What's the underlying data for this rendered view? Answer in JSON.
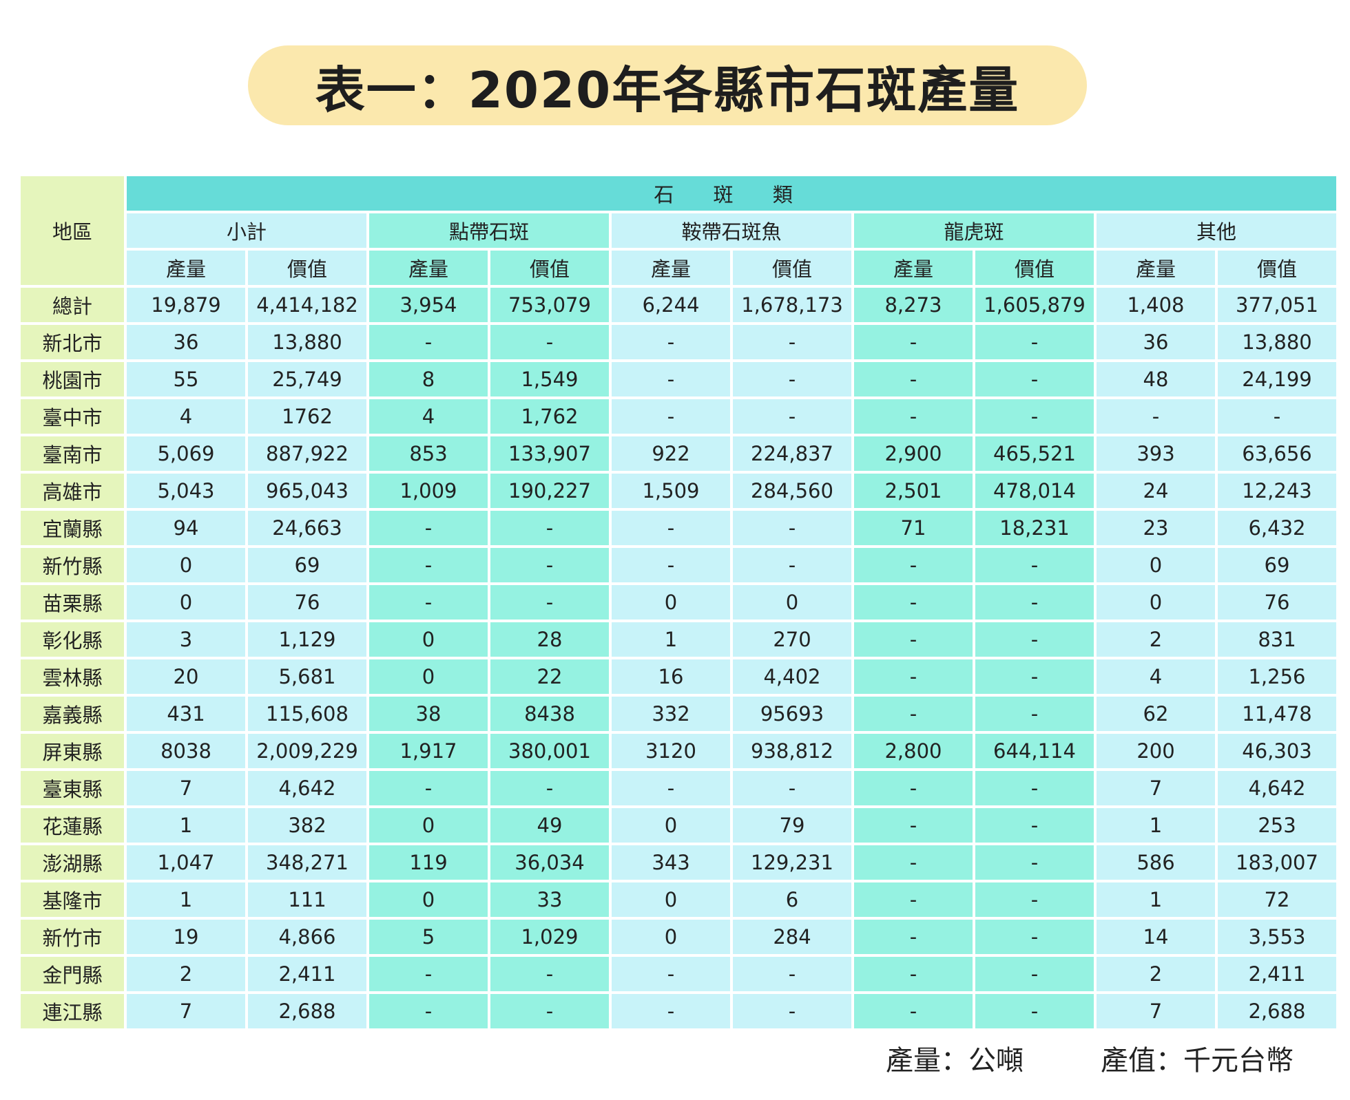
{
  "title": "表一：2020年各縣市石斑產量",
  "table": {
    "region_header": "地區",
    "category_header": "石 斑 類",
    "species": [
      "小計",
      "點帶石斑",
      "鞍帶石斑魚",
      "龍虎斑",
      "其他"
    ],
    "sub_headers": [
      "產量",
      "價值",
      "產量",
      "價值",
      "產量",
      "價值",
      "產量",
      "價值",
      "產量",
      "價值"
    ],
    "rows": [
      {
        "region": "總計",
        "values": [
          "19,879",
          "4,414,182",
          "3,954",
          "753,079",
          "6,244",
          "1,678,173",
          "8,273",
          "1,605,879",
          "1,408",
          "377,051"
        ]
      },
      {
        "region": "新北市",
        "values": [
          "36",
          "13,880",
          "-",
          "-",
          "-",
          "-",
          "-",
          "-",
          "36",
          "13,880"
        ]
      },
      {
        "region": "桃園市",
        "values": [
          "55",
          "25,749",
          "8",
          "1,549",
          "-",
          "-",
          "-",
          "-",
          "48",
          "24,199"
        ]
      },
      {
        "region": "臺中市",
        "values": [
          "4",
          "1762",
          "4",
          "1,762",
          "-",
          "-",
          "-",
          "-",
          "-",
          "-"
        ]
      },
      {
        "region": "臺南市",
        "values": [
          "5,069",
          "887,922",
          "853",
          "133,907",
          "922",
          "224,837",
          "2,900",
          "465,521",
          "393",
          "63,656"
        ]
      },
      {
        "region": "高雄市",
        "values": [
          "5,043",
          "965,043",
          "1,009",
          "190,227",
          "1,509",
          "284,560",
          "2,501",
          "478,014",
          "24",
          "12,243"
        ]
      },
      {
        "region": "宜蘭縣",
        "values": [
          "94",
          "24,663",
          "-",
          "-",
          "-",
          "-",
          "71",
          "18,231",
          "23",
          "6,432"
        ]
      },
      {
        "region": "新竹縣",
        "values": [
          "0",
          "69",
          "-",
          "-",
          "-",
          "-",
          "-",
          "-",
          "0",
          "69"
        ]
      },
      {
        "region": "苗栗縣",
        "values": [
          "0",
          "76",
          "-",
          "-",
          "0",
          "0",
          "-",
          "-",
          "0",
          "76"
        ]
      },
      {
        "region": "彰化縣",
        "values": [
          "3",
          "1,129",
          "0",
          "28",
          "1",
          "270",
          "-",
          "-",
          "2",
          "831"
        ]
      },
      {
        "region": "雲林縣",
        "values": [
          "20",
          "5,681",
          "0",
          "22",
          "16",
          "4,402",
          "-",
          "-",
          "4",
          "1,256"
        ]
      },
      {
        "region": "嘉義縣",
        "values": [
          "431",
          "115,608",
          "38",
          "8438",
          "332",
          "95693",
          "-",
          "-",
          "62",
          "11,478"
        ]
      },
      {
        "region": "屏東縣",
        "values": [
          "8038",
          "2,009,229",
          "1,917",
          "380,001",
          "3120",
          "938,812",
          "2,800",
          "644,114",
          "200",
          "46,303"
        ]
      },
      {
        "region": "臺東縣",
        "values": [
          "7",
          "4,642",
          "-",
          "-",
          "-",
          "-",
          "-",
          "-",
          "7",
          "4,642"
        ]
      },
      {
        "region": "花蓮縣",
        "values": [
          "1",
          "382",
          "0",
          "49",
          "0",
          "79",
          "-",
          "-",
          "1",
          "253"
        ]
      },
      {
        "region": "澎湖縣",
        "values": [
          "1,047",
          "348,271",
          "119",
          "36,034",
          "343",
          "129,231",
          "-",
          "-",
          "586",
          "183,007"
        ]
      },
      {
        "region": "基隆市",
        "values": [
          "1",
          "111",
          "0",
          "33",
          "0",
          "6",
          "-",
          "-",
          "1",
          "72"
        ]
      },
      {
        "region": "新竹市",
        "values": [
          "19",
          "4,866",
          "5",
          "1,029",
          "0",
          "284",
          "-",
          "-",
          "14",
          "3,553"
        ]
      },
      {
        "region": "金門縣",
        "values": [
          "2",
          "2,411",
          "-",
          "-",
          "-",
          "-",
          "-",
          "-",
          "2",
          "2,411"
        ]
      },
      {
        "region": "連江縣",
        "values": [
          "7",
          "2,688",
          "-",
          "-",
          "-",
          "-",
          "-",
          "-",
          "7",
          "2,688"
        ]
      }
    ]
  },
  "footer": {
    "unit_production": "產量：公噸",
    "unit_value": "產值：千元台幣"
  },
  "colors": {
    "title_bg": "#fbe8ad",
    "region_bg": "#e5f5bc",
    "category_bg": "#66dcd8",
    "light_group_bg": "#c8f3f9",
    "mint_group_bg": "#95f2e1"
  }
}
